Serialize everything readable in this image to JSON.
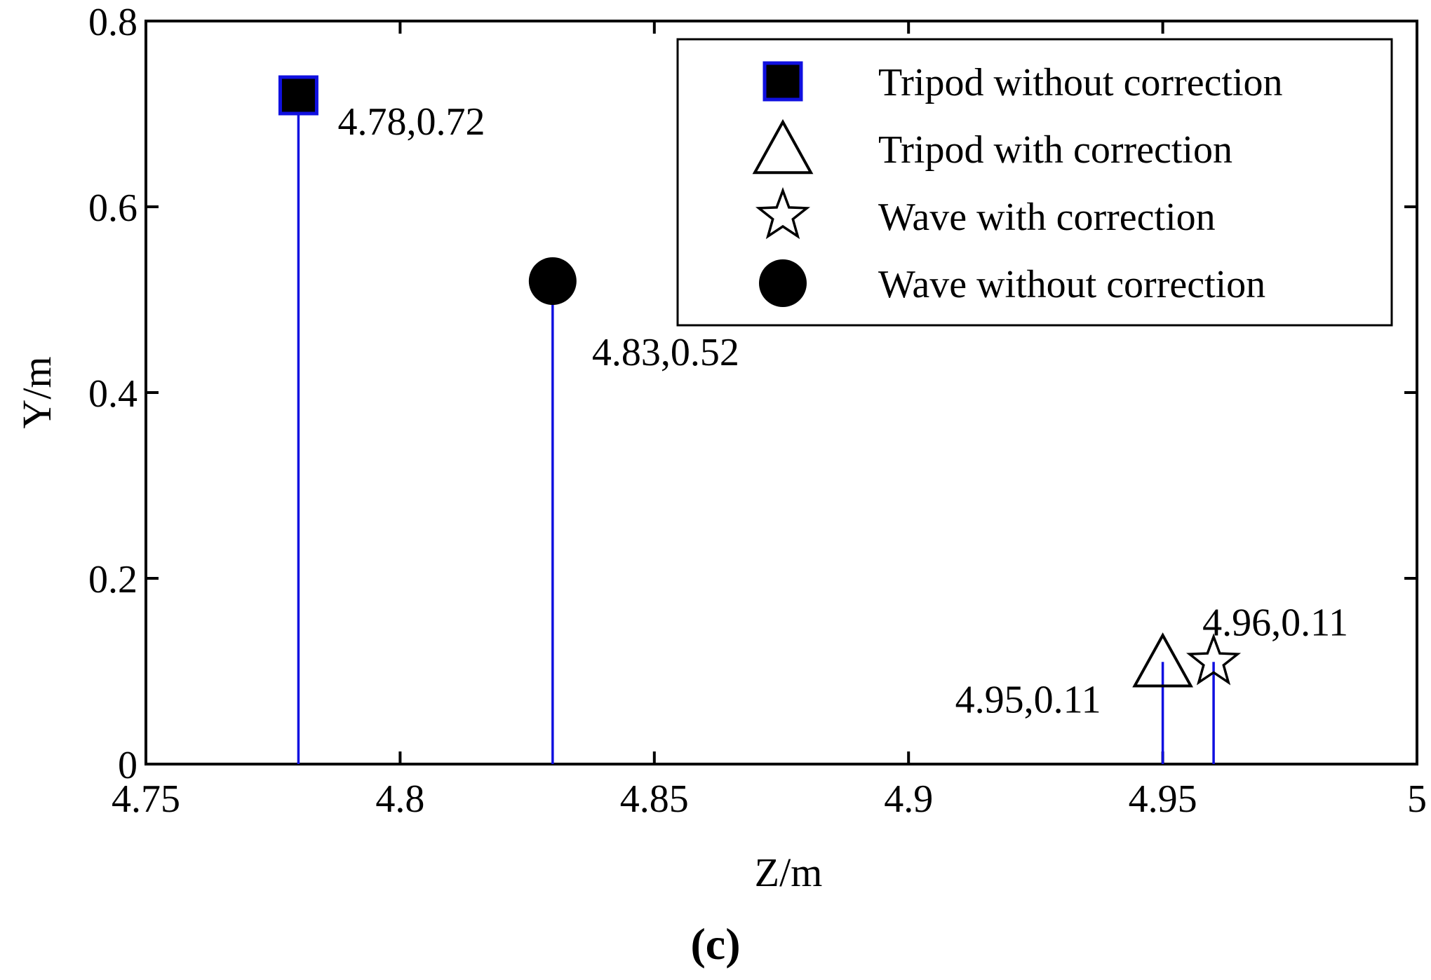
{
  "chart_data": {
    "type": "stem",
    "xlabel": "Z/m",
    "ylabel": "Y/m",
    "xlim": [
      4.75,
      5
    ],
    "ylim": [
      0,
      0.8
    ],
    "xticks": [
      4.75,
      4.8,
      4.85,
      4.9,
      4.95,
      5
    ],
    "xtick_labels": [
      "4.75",
      "4.8",
      "4.85",
      "4.9",
      "4.95",
      "5"
    ],
    "yticks": [
      0,
      0.2,
      0.4,
      0.6,
      0.8
    ],
    "ytick_labels": [
      "0",
      "0.2",
      "0.4",
      "0.6",
      "0.8"
    ],
    "grid": false,
    "legend_position": "top-right",
    "stem_color": "#1010e0",
    "series": [
      {
        "name": "Tripod  without correction",
        "marker": "square",
        "x": 4.78,
        "y": 0.72,
        "label": "4.78,0.72",
        "label_anchor": "right-below"
      },
      {
        "name": "Tripod   with correction",
        "marker": "triangle",
        "x": 4.95,
        "y": 0.11,
        "label": "4.95,0.11",
        "label_anchor": "left-below"
      },
      {
        "name": "Wave with correction",
        "marker": "star",
        "x": 4.96,
        "y": 0.11,
        "label": "4.96,0.11",
        "label_anchor": "right-above"
      },
      {
        "name": "Wave  without correction",
        "marker": "circle",
        "x": 4.83,
        "y": 0.52,
        "label": "4.83,0.52",
        "label_anchor": "right-below"
      }
    ]
  },
  "caption": "(c)"
}
